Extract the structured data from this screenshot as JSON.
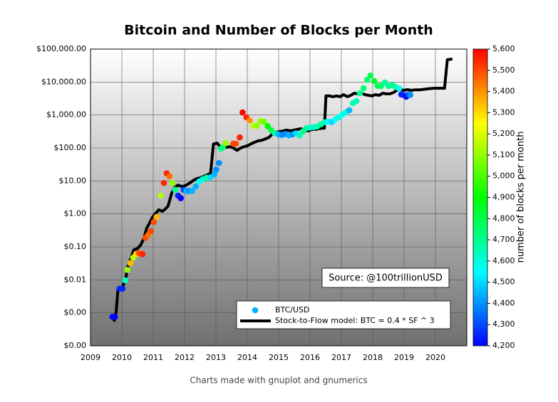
{
  "chart_data": {
    "type": "scatter",
    "title": "Bitcoin and Number of Blocks per Month",
    "caption": "Charts made with gnuplot and gnumerics",
    "annotation": "Source: @100trillionUSD",
    "colorbar_label": "number of blocks per month",
    "log_y": true,
    "grid": true,
    "legend_position": "bottom-right",
    "colormap": [
      "#0000ff",
      "#00ffff",
      "#00ff00",
      "#ffff00",
      "#ff0000"
    ],
    "xlim": [
      2009,
      2021
    ],
    "xticks": [
      2009,
      2010,
      2011,
      2012,
      2013,
      2014,
      2015,
      2016,
      2017,
      2018,
      2019,
      2020
    ],
    "ylim": [
      0.0001,
      100000
    ],
    "yticks": [
      {
        "value": 0.0001,
        "label": "$0.00"
      },
      {
        "value": 0.001,
        "label": "$0.00"
      },
      {
        "value": 0.01,
        "label": "$0.01"
      },
      {
        "value": 0.1,
        "label": "$0.10"
      },
      {
        "value": 1,
        "label": "$1.00"
      },
      {
        "value": 10,
        "label": "$10.00"
      },
      {
        "value": 100,
        "label": "$100.00"
      },
      {
        "value": 1000,
        "label": "$1,000.00"
      },
      {
        "value": 10000,
        "label": "$10,000.00"
      },
      {
        "value": 100000,
        "label": "$100,000.00"
      }
    ],
    "clim": [
      4200,
      5600
    ],
    "cticks": [
      {
        "value": 4200,
        "label": "4,200"
      },
      {
        "value": 4300,
        "label": "4,300"
      },
      {
        "value": 4400,
        "label": "4,400"
      },
      {
        "value": 4500,
        "label": "4,500"
      },
      {
        "value": 4600,
        "label": "4,600"
      },
      {
        "value": 4700,
        "label": "4,700"
      },
      {
        "value": 4800,
        "label": "4,800"
      },
      {
        "value": 4900,
        "label": "4,900"
      },
      {
        "value": 5000,
        "label": "5,000"
      },
      {
        "value": 5100,
        "label": "5,100"
      },
      {
        "value": 5200,
        "label": "5,200"
      },
      {
        "value": 5300,
        "label": "5,300"
      },
      {
        "value": 5400,
        "label": "5,400"
      },
      {
        "value": 5500,
        "label": "5,500"
      },
      {
        "value": 5600,
        "label": "5,600"
      }
    ],
    "series": [
      {
        "name": "BTC/USD",
        "type": "scatter",
        "color": "#00b0ff",
        "x": [
          2009.7,
          2009.78,
          2009.93,
          2010.02,
          2010.11,
          2010.18,
          2010.27,
          2010.36,
          2010.45,
          2010.54,
          2010.66,
          2010.75,
          2010.84,
          2010.93,
          2011.02,
          2011.11,
          2011.24,
          2011.34,
          2011.43,
          2011.52,
          2011.61,
          2011.7,
          2011.79,
          2011.88,
          2011.97,
          2012.06,
          2012.15,
          2012.24,
          2012.36,
          2012.47,
          2012.58,
          2012.7,
          2012.83,
          2012.95,
          2013.01,
          2013.1,
          2013.16,
          2013.22,
          2013.31,
          2013.55,
          2013.64,
          2013.76,
          2013.85,
          2013.97,
          2014.08,
          2014.19,
          2014.31,
          2014.42,
          2014.53,
          2014.65,
          2014.76,
          2014.87,
          2014.99,
          2015.1,
          2015.21,
          2015.33,
          2015.44,
          2015.55,
          2015.67,
          2015.78,
          2015.89,
          2016.0,
          2016.12,
          2016.23,
          2016.35,
          2016.46,
          2016.57,
          2016.69,
          2016.8,
          2016.91,
          2017.03,
          2017.14,
          2017.25,
          2017.37,
          2017.48,
          2017.59,
          2017.71,
          2017.82,
          2017.93,
          2018.05,
          2018.16,
          2018.27,
          2018.39,
          2018.5,
          2018.62,
          2018.73,
          2018.84,
          2018.91,
          2019.0,
          2019.07,
          2019.14,
          2019.2
        ],
        "values": [
          0.00076,
          0.00076,
          0.0054,
          0.0054,
          0.0097,
          0.02,
          0.032,
          0.047,
          0.06,
          0.065,
          0.06,
          0.19,
          0.23,
          0.3,
          0.57,
          0.81,
          3.6,
          8.7,
          17,
          13.8,
          8.7,
          5.4,
          3.6,
          3.0,
          5.4,
          5.0,
          5.0,
          5.0,
          6.8,
          9.7,
          11.3,
          12.5,
          13,
          15.9,
          22,
          35,
          95,
          105,
          141,
          135,
          135,
          210,
          1200,
          850,
          690,
          470,
          470,
          660,
          620,
          460,
          350,
          285,
          260,
          250,
          265,
          240,
          260,
          280,
          240,
          320,
          400,
          420,
          430,
          450,
          520,
          600,
          630,
          610,
          730,
          850,
          1030,
          1200,
          1400,
          2300,
          2650,
          4600,
          6500,
          11700,
          15800,
          10700,
          7600,
          7600,
          9700,
          7600,
          8000,
          7100,
          6400,
          4200,
          4000,
          3600,
          4100,
          4100
        ],
        "blocks": [
          4200,
          4200,
          4250,
          4250,
          4650,
          5100,
          5350,
          5150,
          5300,
          5500,
          5550,
          5500,
          5450,
          5500,
          5500,
          5350,
          5150,
          5550,
          5550,
          5450,
          5100,
          4700,
          4250,
          4200,
          4300,
          4450,
          4400,
          4450,
          4450,
          4550,
          4600,
          4650,
          4500,
          4450,
          4400,
          4400,
          4700,
          4750,
          5100,
          5500,
          5500,
          5550,
          5600,
          5550,
          5400,
          5150,
          5100,
          5100,
          5050,
          4900,
          4800,
          4700,
          4450,
          4400,
          4400,
          4450,
          4400,
          4500,
          4650,
          4700,
          4700,
          4600,
          4650,
          4650,
          4700,
          4650,
          4550,
          4500,
          4550,
          4600,
          4550,
          4600,
          4450,
          4650,
          4650,
          4700,
          4750,
          4750,
          4800,
          4850,
          4800,
          4750,
          4700,
          4700,
          4700,
          4700,
          4550,
          4250,
          4250,
          4200,
          4300,
          4400
        ]
      },
      {
        "name": "Stock-to-Flow model: BTC = 0.4 * SF ^ 3",
        "type": "line",
        "color": "#000000",
        "x": [
          2009.75,
          2009.82,
          2009.88,
          2010.0,
          2010.11,
          2010.2,
          2010.29,
          2010.38,
          2010.5,
          2010.59,
          2010.7,
          2010.79,
          2010.88,
          2010.97,
          2011.06,
          2011.18,
          2011.29,
          2011.38,
          2011.47,
          2011.59,
          2011.68,
          2011.79,
          2011.88,
          2011.97,
          2012.06,
          2012.17,
          2012.29,
          2012.4,
          2012.51,
          2012.63,
          2012.74,
          2012.83,
          2012.92,
          2013.04,
          2013.13,
          2013.24,
          2013.34,
          2013.45,
          2013.56,
          2013.67,
          2013.79,
          2013.9,
          2014.01,
          2014.13,
          2014.24,
          2014.35,
          2014.46,
          2014.58,
          2014.69,
          2014.81,
          2014.92,
          2015.03,
          2015.15,
          2015.26,
          2015.37,
          2015.49,
          2015.6,
          2015.71,
          2015.83,
          2015.94,
          2016.05,
          2016.17,
          2016.28,
          2016.39,
          2016.46,
          2016.51,
          2016.62,
          2016.73,
          2016.85,
          2016.96,
          2017.07,
          2017.19,
          2017.3,
          2017.41,
          2017.53,
          2017.64,
          2017.75,
          2017.87,
          2017.98,
          2018.09,
          2018.21,
          2018.32,
          2018.43,
          2018.55,
          2018.66,
          2018.77,
          2018.89,
          2019.0,
          2019.11,
          2019.23,
          2019.34,
          2019.5,
          2019.73,
          2019.95,
          2020.29,
          2020.38,
          2020.54
        ],
        "values": [
          0.00054,
          0.0011,
          0.0056,
          0.0056,
          0.0096,
          0.026,
          0.046,
          0.081,
          0.09,
          0.11,
          0.18,
          0.37,
          0.52,
          0.78,
          1.0,
          1.34,
          1.2,
          1.4,
          1.7,
          4.3,
          6.3,
          7.5,
          6.9,
          6.9,
          7.5,
          8.7,
          10.6,
          11.8,
          12.5,
          14,
          15.5,
          17,
          132,
          141,
          110,
          110,
          104,
          110,
          100,
          85,
          100,
          110,
          117,
          135,
          150,
          165,
          170,
          190,
          210,
          270,
          300,
          315,
          330,
          350,
          330,
          350,
          365,
          385,
          350,
          330,
          365,
          365,
          385,
          400,
          400,
          3800,
          3800,
          3600,
          3800,
          3600,
          4160,
          3600,
          3950,
          4600,
          4400,
          4600,
          4160,
          3950,
          3800,
          4160,
          3950,
          4600,
          4400,
          4400,
          4800,
          5600,
          5900,
          5600,
          5900,
          5600,
          5800,
          5800,
          6200,
          6500,
          6500,
          47500,
          50000
        ]
      }
    ]
  }
}
